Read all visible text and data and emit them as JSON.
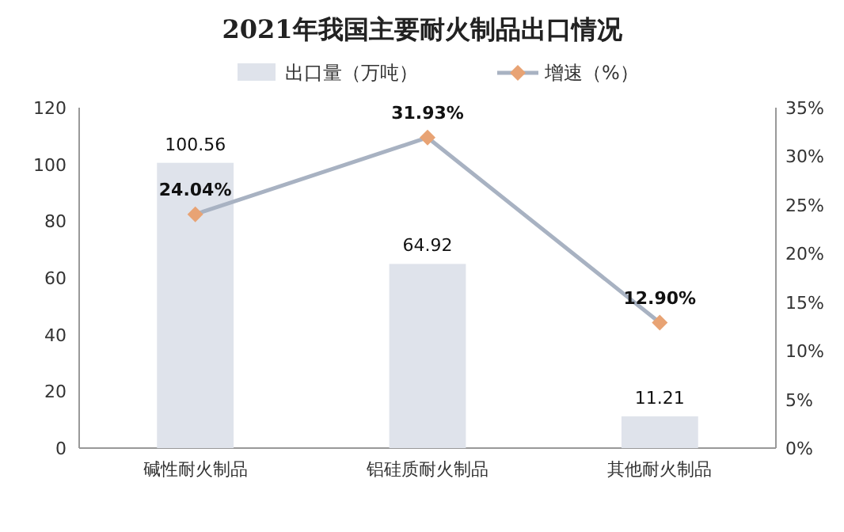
{
  "chart_data": {
    "type": "bar",
    "title": "2021年我国主要耐火制品出口情况",
    "categories": [
      "碱性耐火制品",
      "铝硅质耐火制品",
      "其他耐火制品"
    ],
    "series": [
      {
        "name": "出口量（万吨）",
        "color": "#dfe3eb",
        "values": [
          100.56,
          64.92,
          11.21
        ],
        "value_labels": [
          "100.56",
          "64.92",
          "11.21"
        ]
      },
      {
        "name": "增速（%）",
        "type": "line",
        "axis": "y2",
        "color": "#a8b2c2",
        "colors": [
          "#e8a374",
          "#e8a374",
          "#e8a374"
        ],
        "marker": "diamond",
        "values": [
          24.04,
          31.93,
          12.9
        ],
        "value_labels": [
          "24.04%",
          "31.93%",
          "12.90%"
        ]
      }
    ],
    "ylim": [
      0,
      120
    ],
    "yticks": [
      0,
      20,
      40,
      60,
      80,
      100,
      120
    ],
    "y2lim": [
      0,
      35
    ],
    "y2ticks": [
      {
        "value": 0,
        "label": "0%"
      },
      {
        "value": 5,
        "label": "5%"
      },
      {
        "value": 10,
        "label": "10%"
      },
      {
        "value": 15,
        "label": "15%"
      },
      {
        "value": 20,
        "label": "20%"
      },
      {
        "value": 25,
        "label": "25%"
      },
      {
        "value": 30,
        "label": "30%"
      },
      {
        "value": 35,
        "label": "35%"
      }
    ],
    "legend": "top"
  }
}
